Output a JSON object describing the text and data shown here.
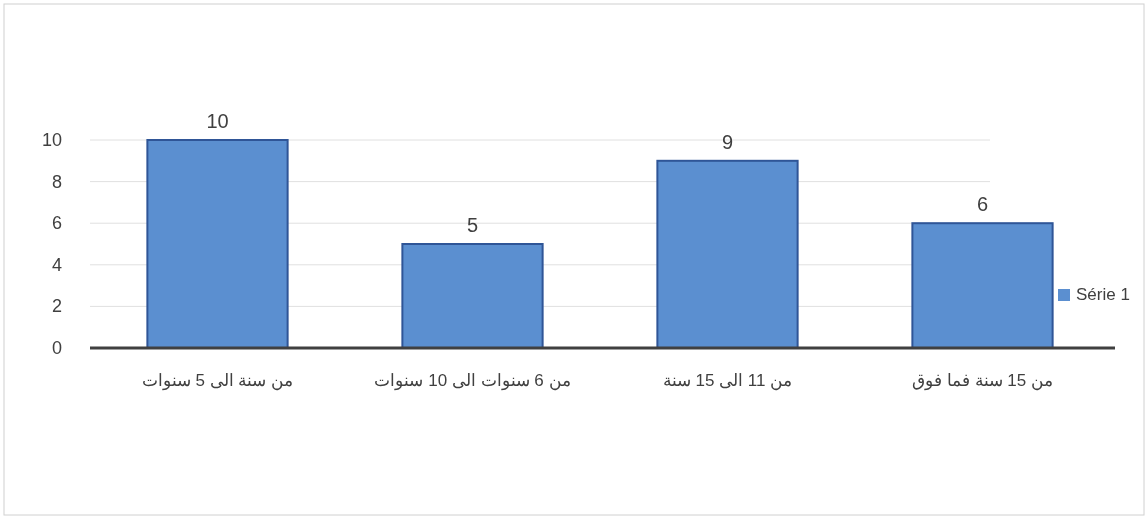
{
  "chart_data": {
    "type": "bar",
    "categories": [
      "من سنة الى 5 سنوات",
      "من 6 سنوات الى 10 سنوات",
      "من 11 الى 15 سنة",
      "من 15 سنة فما فوق"
    ],
    "series": [
      {
        "name": "Série 1",
        "color": "#5b8fd0",
        "values": [
          10,
          5,
          9,
          6
        ]
      }
    ],
    "ylim": [
      0,
      10
    ],
    "yticks": [
      0,
      2,
      4,
      6,
      8,
      10
    ],
    "grid": "y",
    "data_labels": true,
    "legend": "right"
  }
}
